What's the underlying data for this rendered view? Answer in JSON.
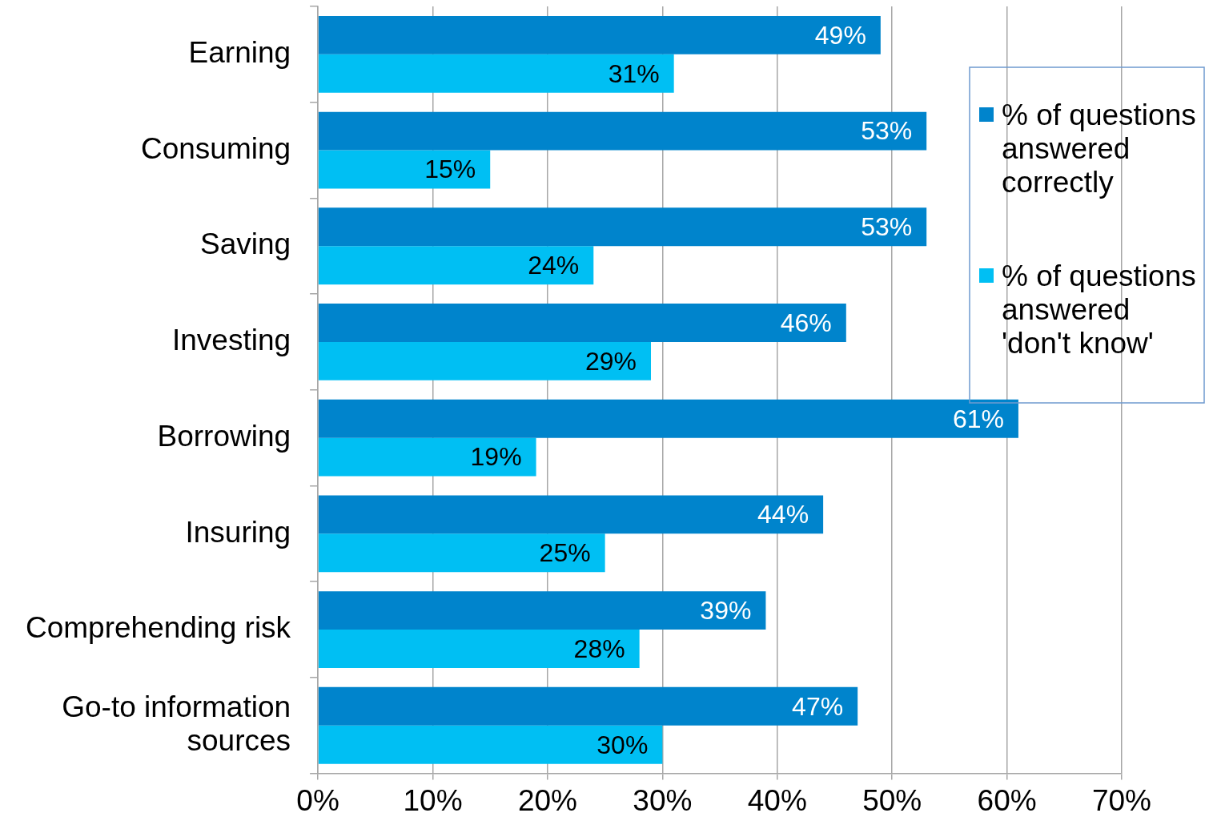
{
  "chart_data": {
    "type": "bar",
    "orientation": "horizontal",
    "categories": [
      "Earning",
      "Consuming",
      "Saving",
      "Investing",
      "Borrowing",
      "Insuring",
      "Comprehending risk",
      "Go-to information sources"
    ],
    "series": [
      {
        "name": "% of questions answered correctly",
        "color": "#0084cc",
        "values": [
          49,
          53,
          53,
          46,
          61,
          44,
          39,
          47
        ],
        "value_labels": [
          "49%",
          "53%",
          "53%",
          "46%",
          "61%",
          "44%",
          "39%",
          "47%"
        ]
      },
      {
        "name": "% of questions answered 'don't know'",
        "color": "#00bff3",
        "values": [
          31,
          15,
          24,
          29,
          19,
          25,
          28,
          30
        ],
        "value_labels": [
          "31%",
          "15%",
          "24%",
          "29%",
          "19%",
          "25%",
          "28%",
          "30%"
        ]
      }
    ],
    "xlim": [
      0,
      70
    ],
    "xticks": [
      {
        "value": 0,
        "label": "0%"
      },
      {
        "value": 10,
        "label": "10%"
      },
      {
        "value": 20,
        "label": "20%"
      },
      {
        "value": 30,
        "label": "30%"
      },
      {
        "value": 40,
        "label": "40%"
      },
      {
        "value": 50,
        "label": "50%"
      },
      {
        "value": 60,
        "label": "60%"
      },
      {
        "value": 70,
        "label": "70%"
      }
    ],
    "grid": "x",
    "legend": "top right"
  }
}
